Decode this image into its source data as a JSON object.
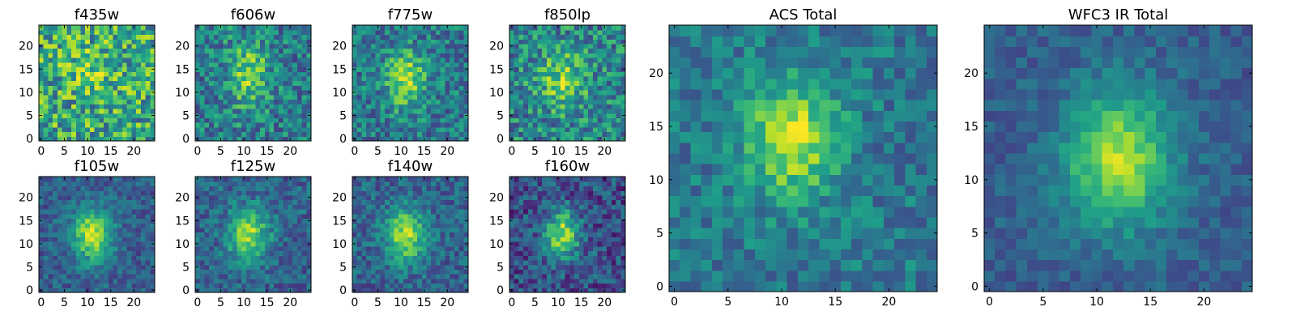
{
  "chart_data": [
    {
      "type": "heatmap",
      "title": "f435w",
      "xlim": [
        0,
        24
      ],
      "ylim": [
        0,
        24
      ],
      "xticks": [
        0,
        5,
        10,
        15,
        20
      ],
      "yticks": [
        0,
        5,
        10,
        15,
        20
      ],
      "grid": false,
      "colormap": "viridis",
      "center": [
        11,
        15
      ],
      "spread": [
        4,
        3
      ],
      "amp": 0.2,
      "base": 0.6,
      "noise": 0.32,
      "seed": 11
    },
    {
      "type": "heatmap",
      "title": "f606w",
      "xlim": [
        0,
        24
      ],
      "ylim": [
        0,
        24
      ],
      "xticks": [
        0,
        5,
        10,
        15,
        20
      ],
      "yticks": [
        0,
        5,
        10,
        15,
        20
      ],
      "grid": false,
      "colormap": "viridis",
      "center": [
        11,
        14
      ],
      "spread": [
        3,
        5
      ],
      "amp": 0.38,
      "base": 0.42,
      "noise": 0.24,
      "seed": 23
    },
    {
      "type": "heatmap",
      "title": "f775w",
      "xlim": [
        0,
        24
      ],
      "ylim": [
        0,
        24
      ],
      "xticks": [
        0,
        5,
        10,
        15,
        20
      ],
      "yticks": [
        0,
        5,
        10,
        15,
        20
      ],
      "grid": false,
      "colormap": "viridis",
      "center": [
        11,
        13
      ],
      "spread": [
        3,
        4.5
      ],
      "amp": 0.45,
      "base": 0.4,
      "noise": 0.22,
      "seed": 37
    },
    {
      "type": "heatmap",
      "title": "f850lp",
      "xlim": [
        0,
        24
      ],
      "ylim": [
        0,
        24
      ],
      "xticks": [
        0,
        5,
        10,
        15,
        20
      ],
      "yticks": [
        0,
        5,
        10,
        15,
        20
      ],
      "grid": false,
      "colormap": "viridis",
      "center": [
        11,
        13
      ],
      "spread": [
        3.5,
        4.5
      ],
      "amp": 0.35,
      "base": 0.45,
      "noise": 0.26,
      "seed": 41
    },
    {
      "type": "heatmap",
      "title": "ACS Total",
      "xlim": [
        0,
        24
      ],
      "ylim": [
        0,
        24
      ],
      "xticks": [
        0,
        5,
        10,
        15,
        20
      ],
      "yticks": [
        0,
        5,
        10,
        15,
        20
      ],
      "grid": false,
      "colormap": "viridis",
      "center": [
        11,
        14
      ],
      "spread": [
        3,
        4
      ],
      "amp": 0.5,
      "base": 0.4,
      "noise": 0.16,
      "seed": 53
    },
    {
      "type": "heatmap",
      "title": "WFC3 IR Total",
      "xlim": [
        0,
        24
      ],
      "ylim": [
        0,
        24
      ],
      "xticks": [
        0,
        5,
        10,
        15,
        20
      ],
      "yticks": [
        0,
        5,
        10,
        15,
        20
      ],
      "grid": false,
      "colormap": "viridis",
      "center": [
        12,
        12
      ],
      "spread": [
        3.5,
        4.5
      ],
      "amp": 0.58,
      "base": 0.3,
      "noise": 0.1,
      "seed": 67
    },
    {
      "type": "heatmap",
      "title": "f105w",
      "xlim": [
        0,
        24
      ],
      "ylim": [
        0,
        24
      ],
      "xticks": [
        0,
        5,
        10,
        15,
        20
      ],
      "yticks": [
        0,
        5,
        10,
        15,
        20
      ],
      "grid": false,
      "colormap": "viridis",
      "center": [
        11,
        12
      ],
      "spread": [
        3,
        4
      ],
      "amp": 0.6,
      "base": 0.3,
      "noise": 0.14,
      "seed": 71
    },
    {
      "type": "heatmap",
      "title": "f125w",
      "xlim": [
        0,
        24
      ],
      "ylim": [
        0,
        24
      ],
      "xticks": [
        0,
        5,
        10,
        15,
        20
      ],
      "yticks": [
        0,
        5,
        10,
        15,
        20
      ],
      "grid": false,
      "colormap": "viridis",
      "center": [
        11,
        12
      ],
      "spread": [
        3,
        4
      ],
      "amp": 0.55,
      "base": 0.32,
      "noise": 0.16,
      "seed": 83
    },
    {
      "type": "heatmap",
      "title": "f140w",
      "xlim": [
        0,
        24
      ],
      "ylim": [
        0,
        24
      ],
      "xticks": [
        0,
        5,
        10,
        15,
        20
      ],
      "yticks": [
        0,
        5,
        10,
        15,
        20
      ],
      "grid": false,
      "colormap": "viridis",
      "center": [
        11,
        12
      ],
      "spread": [
        3,
        4
      ],
      "amp": 0.55,
      "base": 0.32,
      "noise": 0.16,
      "seed": 97
    },
    {
      "type": "heatmap",
      "title": "f160w",
      "xlim": [
        0,
        24
      ],
      "ylim": [
        0,
        24
      ],
      "xticks": [
        0,
        5,
        10,
        15,
        20
      ],
      "yticks": [
        0,
        5,
        10,
        15,
        20
      ],
      "grid": false,
      "colormap": "viridis",
      "center": [
        11,
        12
      ],
      "spread": [
        2.5,
        3.5
      ],
      "amp": 0.62,
      "base": 0.25,
      "noise": 0.2,
      "seed": 101
    }
  ]
}
